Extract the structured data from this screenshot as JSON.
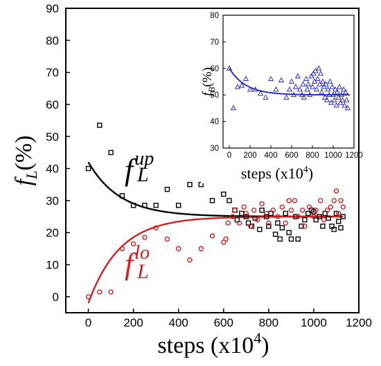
{
  "chart_data": [
    {
      "type": "scatter",
      "xlabel": "steps (x10",
      "xlabel_sup": "4",
      "xlabel_close": ")",
      "ylabel": "(%)",
      "ylabel_f": "f",
      "ylabel_sub": "L",
      "xlim": [
        -100,
        1200
      ],
      "ylim": [
        -5,
        90
      ],
      "xticks": [
        0,
        200,
        400,
        600,
        800,
        1000,
        1200
      ],
      "yticks": [
        0,
        10,
        20,
        30,
        40,
        50,
        60,
        70,
        80,
        90
      ],
      "grid": false,
      "series": [
        {
          "name_f": "f",
          "name_sub": "L",
          "name_sup": "up",
          "marker": "square",
          "color": "#000000",
          "points": [
            [
              0,
              40
            ],
            [
              50,
              53.5
            ],
            [
              100,
              45
            ],
            [
              150,
              31.5
            ],
            [
              200,
              28.5
            ],
            [
              250,
              28.5
            ],
            [
              300,
              28.5
            ],
            [
              350,
              33.5
            ],
            [
              400,
              28.5
            ],
            [
              450,
              35
            ],
            [
              500,
              35
            ],
            [
              550,
              30
            ],
            [
              600,
              32
            ],
            [
              625,
              30
            ],
            [
              650,
              27
            ],
            [
              660,
              24
            ],
            [
              680,
              26
            ],
            [
              700,
              25
            ],
            [
              710,
              23
            ],
            [
              725,
              22
            ],
            [
              740,
              24.5
            ],
            [
              760,
              21
            ],
            [
              770,
              27
            ],
            [
              790,
              25
            ],
            [
              800,
              22
            ],
            [
              810,
              26
            ],
            [
              830,
              19.5
            ],
            [
              840,
              23
            ],
            [
              850,
              18
            ],
            [
              860,
              21.5
            ],
            [
              875,
              26
            ],
            [
              890,
              20
            ],
            [
              900,
              18
            ],
            [
              920,
              25
            ],
            [
              930,
              18
            ],
            [
              945,
              22
            ],
            [
              960,
              24
            ],
            [
              975,
              26
            ],
            [
              990,
              27
            ],
            [
              1000,
              26.5
            ],
            [
              1010,
              24
            ],
            [
              1025,
              25
            ],
            [
              1040,
              22
            ],
            [
              1050,
              26
            ],
            [
              1065,
              24.5
            ],
            [
              1080,
              22
            ],
            [
              1090,
              21
            ],
            [
              1100,
              26
            ],
            [
              1110,
              23.5
            ],
            [
              1120,
              21.5
            ],
            [
              1130,
              25
            ]
          ],
          "fit": {
            "a": 25,
            "b": 17,
            "tau": 140,
            "x_from": 0,
            "x_to": 1130
          }
        },
        {
          "name_f": "f",
          "name_sub": "L",
          "name_sup": "lo",
          "marker": "circle",
          "color": "#d41f1f",
          "points": [
            [
              0,
              0
            ],
            [
              50,
              1.5
            ],
            [
              100,
              1.5
            ],
            [
              150,
              15
            ],
            [
              200,
              16.5
            ],
            [
              250,
              18.5
            ],
            [
              300,
              21.5
            ],
            [
              350,
              18
            ],
            [
              400,
              15
            ],
            [
              450,
              11.5
            ],
            [
              500,
              15
            ],
            [
              550,
              19
            ],
            [
              600,
              17
            ],
            [
              610,
              18
            ],
            [
              620,
              23
            ],
            [
              640,
              25
            ],
            [
              650,
              27
            ],
            [
              670,
              23
            ],
            [
              690,
              28
            ],
            [
              700,
              26
            ],
            [
              720,
              22
            ],
            [
              735,
              27
            ],
            [
              750,
              24
            ],
            [
              770,
              29
            ],
            [
              790,
              26
            ],
            [
              800,
              23
            ],
            [
              820,
              27
            ],
            [
              840,
              25
            ],
            [
              860,
              28
            ],
            [
              875,
              23
            ],
            [
              890,
              30
            ],
            [
              900,
              27
            ],
            [
              915,
              30
            ],
            [
              930,
              25
            ],
            [
              950,
              27
            ],
            [
              960,
              22
            ],
            [
              980,
              28
            ],
            [
              1000,
              25
            ],
            [
              1010,
              27
            ],
            [
              1030,
              30
            ],
            [
              1045,
              24
            ],
            [
              1060,
              27
            ],
            [
              1075,
              28
            ],
            [
              1090,
              30
            ],
            [
              1100,
              33
            ],
            [
              1110,
              26
            ],
            [
              1120,
              30
            ],
            [
              1130,
              28
            ]
          ],
          "fit": {
            "a": 25,
            "b": -27,
            "tau": 140,
            "x_from": 0,
            "x_to": 1130
          }
        }
      ]
    },
    {
      "type": "scatter",
      "xlabel": "steps (x10",
      "xlabel_sup": "4",
      "xlabel_close": ")",
      "ylabel": "(%)",
      "ylabel_f": "f",
      "ylabel_sub": "B",
      "xlim": [
        -60,
        1200
      ],
      "ylim": [
        30,
        80
      ],
      "xticks": [
        0,
        200,
        400,
        600,
        800,
        1000,
        1200
      ],
      "yticks": [
        30,
        40,
        50,
        60,
        70,
        80
      ],
      "grid": false,
      "series": [
        {
          "marker": "triangle",
          "color": "#2b2fc4",
          "points": [
            [
              0,
              60
            ],
            [
              40,
              45
            ],
            [
              80,
              53
            ],
            [
              120,
              53.5
            ],
            [
              160,
              56
            ],
            [
              200,
              52
            ],
            [
              250,
              52
            ],
            [
              300,
              50.5
            ],
            [
              350,
              49
            ],
            [
              400,
              56
            ],
            [
              450,
              52
            ],
            [
              500,
              55.5
            ],
            [
              550,
              49
            ],
            [
              580,
              52
            ],
            [
              600,
              55
            ],
            [
              620,
              50
            ],
            [
              640,
              53
            ],
            [
              660,
              57
            ],
            [
              680,
              52
            ],
            [
              700,
              50
            ],
            [
              710,
              54
            ],
            [
              720,
              49
            ],
            [
              740,
              56
            ],
            [
              750,
              52
            ],
            [
              760,
              54
            ],
            [
              775,
              50
            ],
            [
              790,
              57
            ],
            [
              800,
              53
            ],
            [
              810,
              58
            ],
            [
              820,
              55
            ],
            [
              830,
              59
            ],
            [
              840,
              52
            ],
            [
              850,
              56
            ],
            [
              860,
              60
            ],
            [
              870,
              54
            ],
            [
              880,
              58
            ],
            [
              890,
              51
            ],
            [
              900,
              55
            ],
            [
              910,
              53
            ],
            [
              920,
              49
            ],
            [
              930,
              54
            ],
            [
              940,
              48
            ],
            [
              950,
              52
            ],
            [
              960,
              50
            ],
            [
              970,
              55
            ],
            [
              980,
              47
            ],
            [
              990,
              53
            ],
            [
              1000,
              50
            ],
            [
              1010,
              48
            ],
            [
              1020,
              52
            ],
            [
              1030,
              46
            ],
            [
              1040,
              51
            ],
            [
              1050,
              49
            ],
            [
              1060,
              53
            ],
            [
              1070,
              47
            ],
            [
              1080,
              50
            ],
            [
              1090,
              48
            ],
            [
              1100,
              52
            ],
            [
              1110,
              46
            ],
            [
              1120,
              51
            ],
            [
              1130,
              48
            ],
            [
              1140,
              45
            ]
          ],
          "fit": {
            "a": 50,
            "b": 10,
            "tau": 160,
            "x_from": 0,
            "x_to": 1160
          }
        }
      ]
    }
  ]
}
